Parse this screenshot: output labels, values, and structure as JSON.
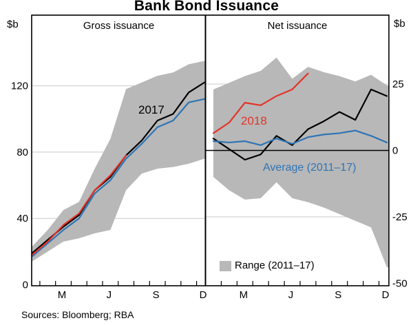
{
  "title": "Bank Bond Issuance",
  "source_note": "Sources: Bloomberg; RBA",
  "axis_units": {
    "left": "$b",
    "right": "$b"
  },
  "colors": {
    "line_2017": "#000000",
    "line_2018": "#e43328",
    "line_average": "#2e74b5",
    "range_band": "#b8b8b8",
    "gridline": "#c9c9c9",
    "frame": "#000000"
  },
  "chart_data": [
    {
      "type": "line",
      "panel": "left",
      "title": "Gross issuance",
      "ylabel": "$b",
      "ylim": [
        0,
        163
      ],
      "yticks": [
        0,
        40,
        80,
        120
      ],
      "grid": true,
      "zero_line_black": false,
      "categories": [
        "Jan",
        "Feb",
        "Mar",
        "Apr",
        "May",
        "Jun",
        "Jul",
        "Aug",
        "Sep",
        "Oct",
        "Nov",
        "Dec"
      ],
      "x_tick_letters": [
        "M",
        "J",
        "S",
        "D"
      ],
      "x_tick_letter_months": [
        2,
        5,
        8,
        11
      ],
      "series": [
        {
          "name": "2017",
          "color": "#000000",
          "values": [
            19,
            27,
            35,
            42,
            57,
            65,
            78,
            87,
            99,
            103,
            116,
            122
          ]
        },
        {
          "name": "Average (2011–17)",
          "color": "#2e74b5",
          "values": [
            17,
            25,
            33,
            40,
            55,
            63,
            76,
            85,
            95,
            99,
            110,
            112
          ]
        },
        {
          "name": "2018",
          "color": "#e43328",
          "values": [
            18,
            26,
            36,
            43,
            57,
            66,
            78
          ]
        }
      ],
      "range_band": {
        "name": "Range (2011–17)",
        "color": "#b8b8b8",
        "lower": [
          14,
          20,
          26,
          28,
          31,
          33,
          57,
          67,
          70,
          71,
          73,
          76
        ],
        "upper": [
          23,
          33,
          45,
          50,
          70,
          88,
          118,
          122,
          126,
          128,
          133,
          135
        ]
      }
    },
    {
      "type": "line",
      "panel": "right",
      "title": "Net issuance",
      "ylabel": "$b",
      "ylim": [
        -50,
        50
      ],
      "yticks": [
        -50,
        -25,
        0,
        25
      ],
      "grid": true,
      "zero_line_black": true,
      "categories": [
        "Jan",
        "Feb",
        "Mar",
        "Apr",
        "May",
        "Jun",
        "Jul",
        "Aug",
        "Sep",
        "Oct",
        "Nov",
        "Dec"
      ],
      "x_tick_letters": [
        "M",
        "J",
        "S",
        "D"
      ],
      "x_tick_letter_months": [
        2,
        5,
        8,
        11
      ],
      "series": [
        {
          "name": "2017",
          "color": "#000000",
          "values": [
            4.5,
            0.5,
            -3.5,
            -1.5,
            5.5,
            2,
            8,
            11,
            14.5,
            11.5,
            23,
            20.5
          ]
        },
        {
          "name": "Average (2011–17)",
          "color": "#2e74b5",
          "values": [
            3.5,
            3,
            3.5,
            2,
            4.5,
            2.5,
            5,
            6,
            6.5,
            7.5,
            5.5,
            3
          ]
        },
        {
          "name": "2018",
          "color": "#e43328",
          "values": [
            6.5,
            10.5,
            18,
            17,
            20.5,
            23,
            29
          ]
        }
      ],
      "range_band": {
        "name": "Range (2011–17)",
        "color": "#b8b8b8",
        "lower": [
          -10,
          -15,
          -18.5,
          -18,
          -12,
          -18,
          -19.5,
          -21.5,
          -24,
          -26.5,
          -29,
          -44
        ],
        "upper": [
          23,
          25.5,
          28,
          30,
          35,
          27,
          31.5,
          29.5,
          28,
          26,
          28.5,
          24.5
        ]
      }
    }
  ]
}
